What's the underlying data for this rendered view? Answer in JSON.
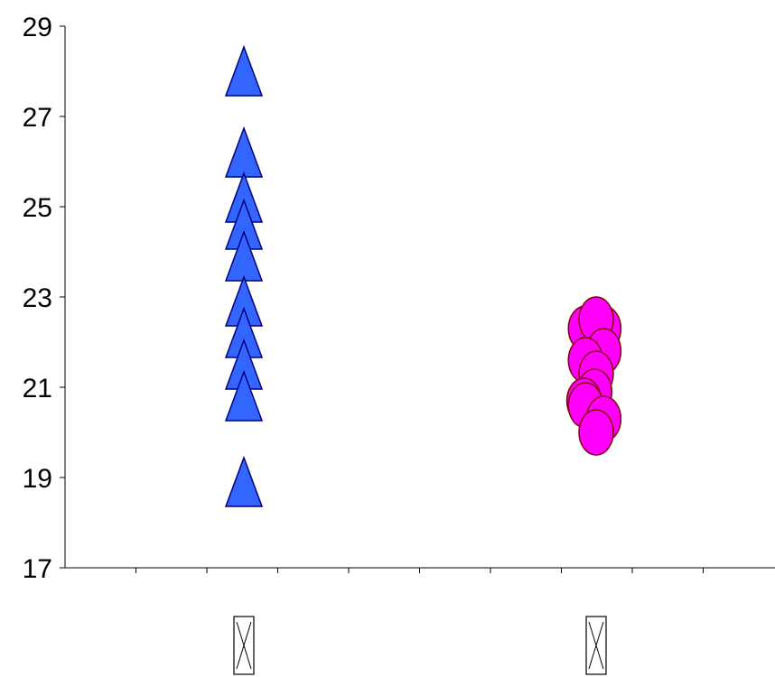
{
  "chart_data": {
    "type": "scatter",
    "title": "",
    "xlabel": "",
    "ylabel": "",
    "ylim": [
      17,
      29
    ],
    "yticks": [
      "17",
      "19",
      "21",
      "23",
      "25",
      "27",
      "29"
    ],
    "grid": false,
    "legend": "none",
    "categories": [
      "⊠",
      "⊠"
    ],
    "series": [
      {
        "marker": "triangle",
        "color": "#3366ff",
        "edge_color": "#000080",
        "category_index": 0,
        "values": [
          28.0,
          26.2,
          25.2,
          24.6,
          23.9,
          22.9,
          22.2,
          21.5,
          20.8,
          18.9
        ]
      },
      {
        "marker": "circle",
        "color": "#ff00ff",
        "edge_color": "#800000",
        "category_index": 1,
        "points": [
          {
            "offset": -0.35,
            "y": 22.3
          },
          {
            "offset": 0.25,
            "y": 22.3
          },
          {
            "offset": 0.0,
            "y": 22.5
          },
          {
            "offset": 0.25,
            "y": 21.8
          },
          {
            "offset": -0.35,
            "y": 21.6
          },
          {
            "offset": 0.0,
            "y": 21.3
          },
          {
            "offset": -0.05,
            "y": 20.9
          },
          {
            "offset": -0.4,
            "y": 20.7
          },
          {
            "offset": -0.35,
            "y": 20.6
          },
          {
            "offset": 0.25,
            "y": 20.3
          },
          {
            "offset": 0.0,
            "y": 20.0
          }
        ]
      }
    ]
  }
}
